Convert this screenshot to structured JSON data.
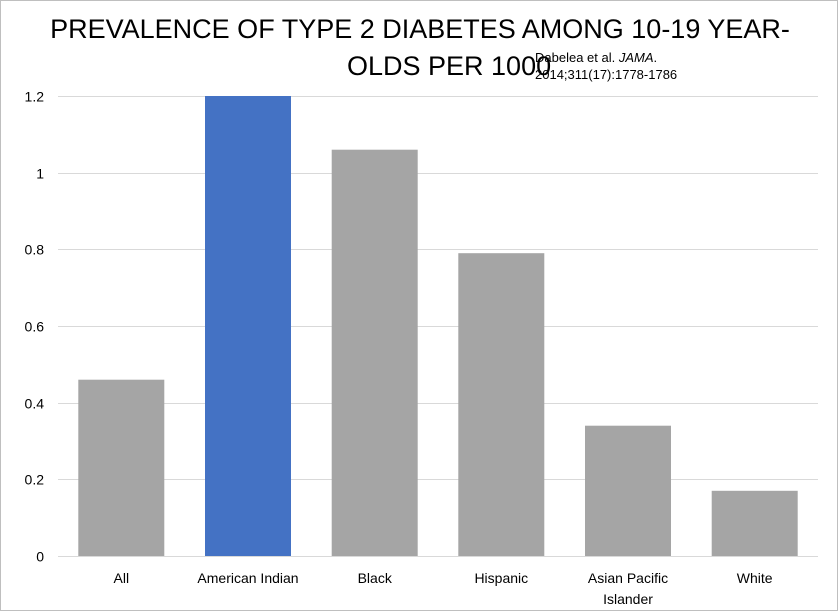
{
  "chart_data": {
    "type": "bar",
    "title_line1": "PREVALENCE OF TYPE 2 DIABETES AMONG 10-19 YEAR-",
    "title_line2": "OLDS PER 1000",
    "source_author": "Dabelea et al. ",
    "source_journal": "JAMA",
    "source_period": ".",
    "source_citation": "2014;311(17):1778-1786",
    "categories": [
      "All",
      "American Indian",
      "Black",
      "Hispanic",
      "Asian Pacific Islander",
      "White"
    ],
    "category_label_lines": [
      [
        "All"
      ],
      [
        "American Indian"
      ],
      [
        "Black"
      ],
      [
        "Hispanic"
      ],
      [
        "Asian Pacific",
        "Islander"
      ],
      [
        "White"
      ]
    ],
    "values": [
      0.46,
      1.2,
      1.06,
      0.79,
      0.34,
      0.17
    ],
    "bar_colors": [
      "#a5a5a5",
      "#4472c4",
      "#a5a5a5",
      "#a5a5a5",
      "#a5a5a5",
      "#a5a5a5"
    ],
    "ylim": [
      0,
      1.2
    ],
    "yticks": [
      "0",
      "0.2",
      "0.4",
      "0.6",
      "0.8",
      "1",
      "1.2"
    ],
    "ytick_values": [
      0,
      0.2,
      0.4,
      0.6,
      0.8,
      1,
      1.2
    ],
    "gridlines": true,
    "legend": "none",
    "gridline_color": "#d9d9d9"
  }
}
